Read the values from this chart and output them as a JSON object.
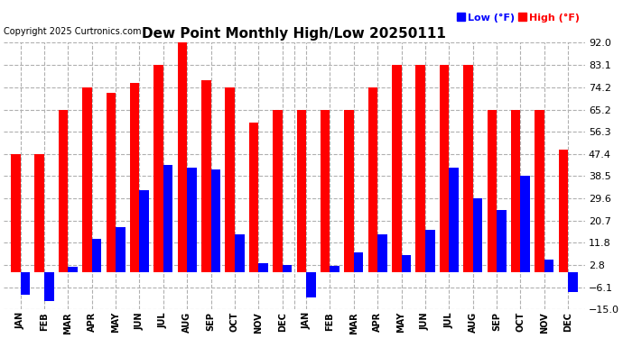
{
  "title": "Dew Point Monthly High/Low 20250111",
  "copyright": "Copyright 2025 Curtronics.com",
  "legend_low": "Low (°F)",
  "legend_high": "High (°F)",
  "color_low": "blue",
  "color_high": "red",
  "ylim": [
    -15.0,
    92.0
  ],
  "yticks": [
    -15.0,
    -6.1,
    2.8,
    11.8,
    20.7,
    29.6,
    38.5,
    47.4,
    56.3,
    65.2,
    74.2,
    83.1,
    92.0
  ],
  "months": [
    "JAN",
    "FEB",
    "MAR",
    "APR",
    "MAY",
    "JUN",
    "JUL",
    "AUG",
    "SEP",
    "OCT",
    "NOV",
    "DEC",
    "JAN",
    "FEB",
    "MAR",
    "APR",
    "MAY",
    "JUN",
    "JUL",
    "AUG",
    "SEP",
    "OCT",
    "NOV",
    "DEC"
  ],
  "high_values": [
    47.4,
    47.4,
    65.2,
    74.2,
    72.0,
    76.0,
    83.1,
    92.0,
    77.0,
    74.2,
    60.0,
    65.2,
    65.2,
    65.2,
    65.2,
    74.2,
    83.1,
    83.1,
    83.1,
    83.1,
    65.2,
    65.2,
    65.2,
    49.0
  ],
  "low_values": [
    -9.0,
    -11.5,
    2.0,
    13.5,
    18.0,
    33.0,
    43.0,
    42.0,
    41.0,
    15.0,
    3.5,
    3.0,
    -10.0,
    2.5,
    8.0,
    15.0,
    7.0,
    17.0,
    42.0,
    29.6,
    25.0,
    38.5,
    5.0,
    -8.0
  ],
  "background_color": "#ffffff",
  "grid_color": "#b0b0b0",
  "bar_width": 0.4,
  "bar_gap": 0.05,
  "figsize": [
    6.9,
    3.75
  ],
  "dpi": 100
}
